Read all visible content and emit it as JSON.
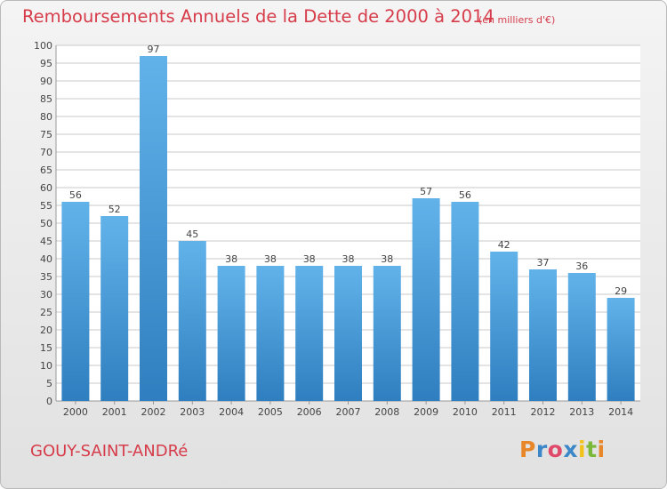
{
  "header": {
    "title": "Remboursements Annuels de la Dette de 2000 à 2014",
    "subtitle": "(en milliers d'€)"
  },
  "footer": {
    "commune": "GOUY-SAINT-ANDRé",
    "logo_text": "Proxiti",
    "logo_colors": [
      "#e8862a",
      "#3c87c8",
      "#e04a6a",
      "#3c87c8",
      "#f2c21a",
      "#7ab83a",
      "#e8862a"
    ]
  },
  "chart_data": {
    "type": "bar",
    "title": "Remboursements Annuels de la Dette de 2000 à 2014",
    "subtitle": "(en milliers d'€)",
    "categories": [
      "2000",
      "2001",
      "2002",
      "2003",
      "2004",
      "2005",
      "2006",
      "2007",
      "2008",
      "2009",
      "2010",
      "2011",
      "2012",
      "2013",
      "2014"
    ],
    "values": [
      56,
      52,
      97,
      45,
      38,
      38,
      38,
      38,
      38,
      57,
      56,
      42,
      37,
      36,
      29
    ],
    "ylim": [
      0,
      100
    ],
    "y_ticks": [
      0,
      5,
      10,
      15,
      20,
      25,
      30,
      35,
      40,
      45,
      50,
      55,
      60,
      65,
      70,
      75,
      80,
      85,
      90,
      95,
      100
    ],
    "grid": true,
    "bar_color_top": "#62b2ea",
    "bar_color_bottom": "#2f7fc0",
    "grid_color": "#c9c9c9",
    "text_color": "#444444"
  }
}
